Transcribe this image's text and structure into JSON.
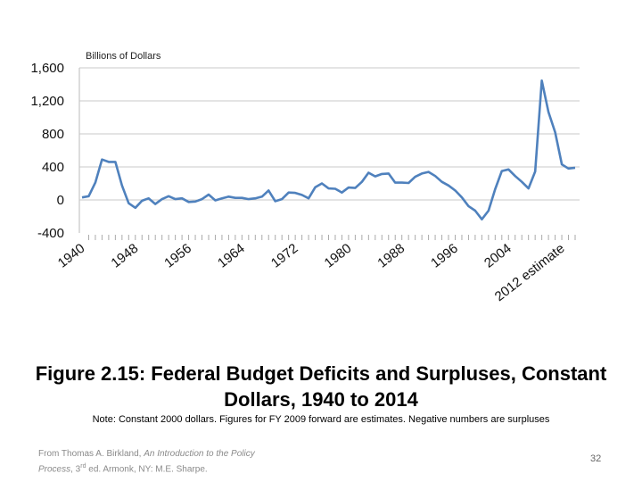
{
  "chart_data": {
    "type": "line",
    "title": "Figure 2.15: Federal Budget Deficits and Surpluses, Constant Dollars, 1940 to 2014",
    "ylabel": "Billions of Dollars",
    "xlabel": "",
    "ylim": [
      -400,
      1600
    ],
    "xlim": [
      1940,
      2014
    ],
    "yticks": [
      "1,600",
      "1,200",
      "800",
      "400",
      "0",
      "-400"
    ],
    "ytick_values": [
      1600,
      1200,
      800,
      400,
      0,
      -400
    ],
    "xtick_labels": [
      "1940",
      "1948",
      "1956",
      "1964",
      "1972",
      "1980",
      "1988",
      "1996",
      "2004",
      "2012 estimate"
    ],
    "xtick_values": [
      1940,
      1948,
      1956,
      1964,
      1972,
      1980,
      1988,
      1996,
      2004,
      2012
    ],
    "grid": true,
    "line_color": "#4f81bd",
    "x": [
      1940,
      1941,
      1942,
      1943,
      1944,
      1945,
      1946,
      1947,
      1948,
      1949,
      1950,
      1951,
      1952,
      1953,
      1954,
      1955,
      1956,
      1957,
      1958,
      1959,
      1960,
      1961,
      1962,
      1963,
      1964,
      1965,
      1966,
      1967,
      1968,
      1969,
      1970,
      1971,
      1972,
      1973,
      1974,
      1975,
      1976,
      1977,
      1978,
      1979,
      1980,
      1981,
      1982,
      1983,
      1984,
      1985,
      1986,
      1987,
      1988,
      1989,
      1990,
      1991,
      1992,
      1993,
      1994,
      1995,
      1996,
      1997,
      1998,
      1999,
      2000,
      2001,
      2002,
      2003,
      2004,
      2005,
      2006,
      2007,
      2008,
      2009,
      2010,
      2011,
      2012,
      2013,
      2014
    ],
    "values": [
      30,
      45,
      210,
      490,
      460,
      460,
      175,
      -40,
      -95,
      -10,
      20,
      -50,
      10,
      45,
      10,
      20,
      -25,
      -20,
      10,
      65,
      -5,
      20,
      40,
      25,
      25,
      10,
      20,
      40,
      115,
      -15,
      10,
      90,
      85,
      60,
      20,
      155,
      200,
      140,
      135,
      90,
      150,
      145,
      220,
      330,
      285,
      315,
      320,
      210,
      210,
      205,
      280,
      320,
      340,
      290,
      220,
      175,
      115,
      30,
      -75,
      -130,
      -235,
      -130,
      130,
      350,
      370,
      290,
      220,
      140,
      345,
      1445,
      1065,
      820,
      430,
      380,
      390
    ]
  },
  "slide": {
    "title_line1": "Figure 2.15: Federal Budget Deficits and Surpluses, Constant",
    "title_line2": "Dollars, 1940 to 2014",
    "note": "Note: Constant 2000 dollars. Figures for FY 2009 forward are estimates. Negative numbers are surpluses",
    "source_prefix": "From Thomas A. Birkland, ",
    "source_italic1": "An Introduction to the Policy",
    "source_italic2": "Process",
    "source_suffix": ", 3",
    "source_sup": "rd",
    "source_end": " ed. Armonk, NY: M.E. Sharpe.",
    "page_number": "32"
  }
}
